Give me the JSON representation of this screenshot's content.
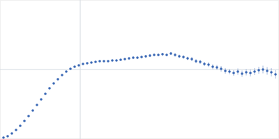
{
  "chart_data": {
    "type": "scatter",
    "xlim": [
      0,
      400
    ],
    "ylim": [
      0,
      200
    ],
    "xticks": [
      115
    ],
    "yticks": [
      100
    ],
    "grid": true,
    "tick_labels": false,
    "series": [
      {
        "color": "#3a68b5",
        "marker": "circle",
        "x": [
          5,
          11,
          17,
          23,
          29,
          35,
          41,
          47,
          53,
          59,
          65,
          71,
          77,
          83,
          89,
          95,
          101,
          107,
          113,
          119,
          125,
          131,
          137,
          143,
          149,
          155,
          161,
          167,
          173,
          179,
          185,
          191,
          197,
          203,
          209,
          215,
          221,
          227,
          233,
          239,
          245,
          251,
          257,
          263,
          269,
          275,
          281,
          287,
          293,
          299,
          305,
          311,
          317,
          323,
          329,
          335,
          341,
          347,
          353,
          359,
          365,
          371,
          377,
          383,
          389,
          395
        ],
        "values": [
          2,
          4,
          8,
          13,
          19,
          26,
          33,
          41,
          49,
          57,
          65,
          73,
          80,
          86,
          92,
          97,
          101,
          104,
          106,
          108,
          109,
          110,
          111,
          112,
          112,
          112,
          113,
          113,
          114,
          115,
          116,
          117,
          117,
          118,
          119,
          120,
          121,
          121,
          122,
          121,
          123,
          121,
          119,
          118,
          116,
          115,
          112,
          111,
          108,
          107,
          104,
          103,
          101,
          98,
          97,
          95,
          97,
          94,
          96,
          95,
          97,
          99,
          100,
          98,
          96,
          93
        ],
        "errors": [
          0.3,
          0.3,
          0.3,
          0.3,
          0.3,
          0.3,
          0.3,
          0.3,
          0.3,
          0.3,
          0.3,
          0.3,
          0.3,
          0.3,
          0.3,
          0.3,
          0.3,
          0.5,
          0.5,
          1,
          1,
          1,
          1,
          1,
          1,
          1,
          1,
          1,
          1,
          1.5,
          1.5,
          1.5,
          1.5,
          2,
          2,
          2,
          2,
          2,
          2,
          2,
          2,
          2.5,
          2.5,
          2.5,
          2.5,
          3,
          3,
          3,
          3,
          3.5,
          3.5,
          3.5,
          4,
          4,
          4,
          4,
          4.5,
          4.5,
          4.5,
          5,
          5,
          5,
          5.5,
          5.5,
          6,
          6
        ]
      }
    ]
  }
}
